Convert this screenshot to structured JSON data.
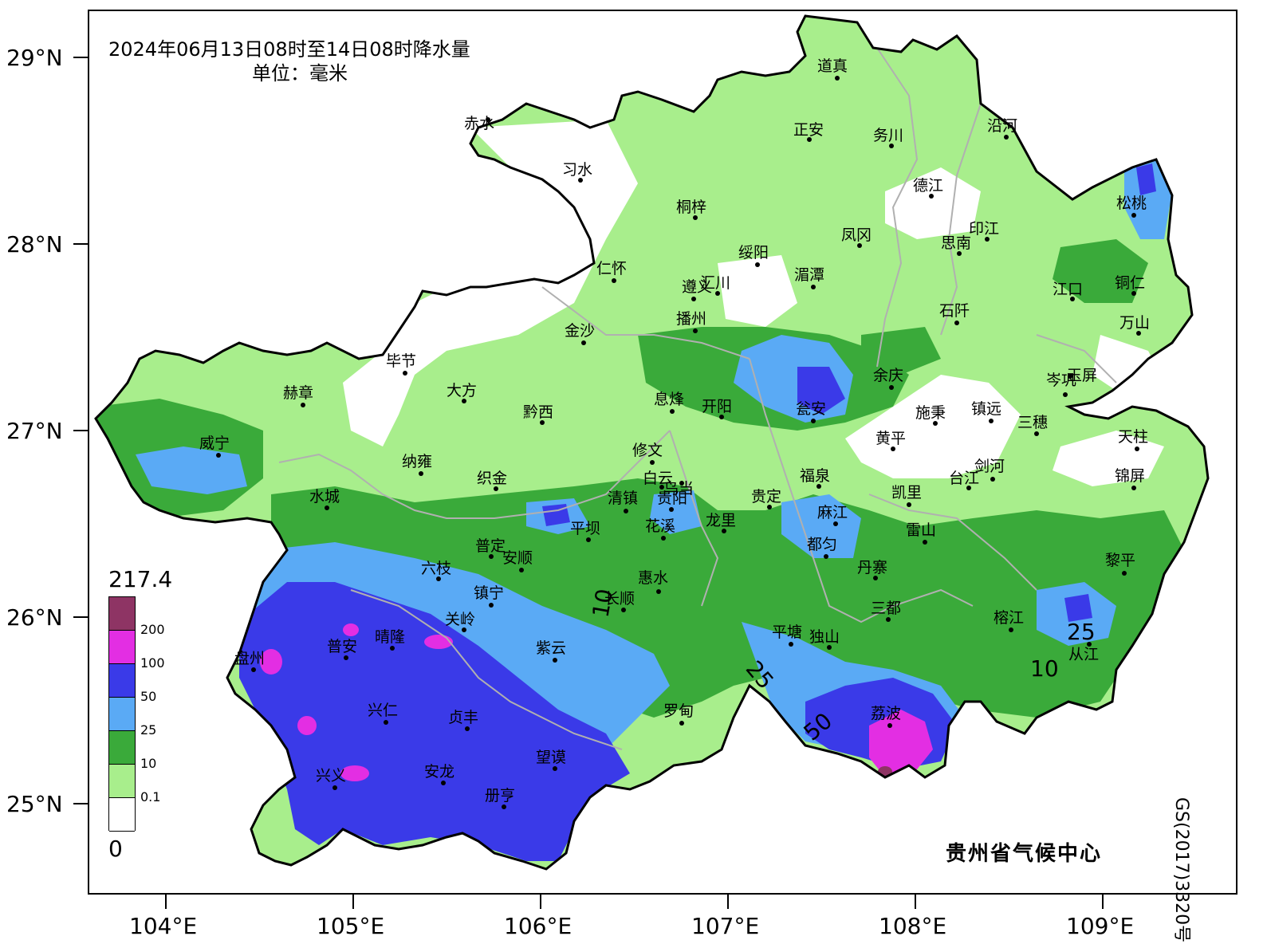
{
  "title": {
    "line1": "2024年06月13日08时至14日08时降水量",
    "line2": "单位：毫米"
  },
  "credit": "贵州省气候中心",
  "map_number": "GS(2017)3320号",
  "axes": {
    "lat_ticks": [
      "29°N",
      "28°N",
      "27°N",
      "26°N",
      "25°N"
    ],
    "lon_ticks": [
      "104°E",
      "105°E",
      "106°E",
      "107°E",
      "108°E",
      "109°E"
    ]
  },
  "legend": {
    "max": "217.4",
    "min": "0",
    "levels": [
      {
        "label": "200",
        "color": "#8e3464"
      },
      {
        "label": "100",
        "color": "#e32ee3"
      },
      {
        "label": "50",
        "color": "#3a3ae8"
      },
      {
        "label": "25",
        "color": "#5aaaf5"
      },
      {
        "label": "10",
        "color": "#3aaa3a"
      },
      {
        "label": "0.1",
        "color": "#a8ee8c"
      },
      {
        "label": "",
        "color": "#ffffff"
      }
    ]
  },
  "contour_labels": [
    "10",
    "25",
    "50",
    "25",
    "10"
  ],
  "cities": [
    "道真",
    "赤水",
    "正安",
    "务川",
    "沿河",
    "习水",
    "德江",
    "松桃",
    "桐梓",
    "凤冈",
    "印江",
    "思南",
    "仁怀",
    "绥阳",
    "湄潭",
    "遵义",
    "汇川",
    "江口",
    "铜仁",
    "播州",
    "石阡",
    "万山",
    "金沙",
    "毕节",
    "余庆",
    "岑巩",
    "玉屏",
    "赫章",
    "大方",
    "黔西",
    "息烽",
    "开阳",
    "瓮安",
    "施秉",
    "镇远",
    "三穗",
    "天柱",
    "威宁",
    "修文",
    "黄平",
    "剑河",
    "纳雍",
    "织金",
    "白云",
    "乌当",
    "福泉",
    "凯里",
    "台江",
    "锦屏",
    "水城",
    "清镇",
    "贵阳",
    "贵定",
    "麻江",
    "雷山",
    "平坝",
    "花溪",
    "龙里",
    "普定",
    "安顺",
    "都匀",
    "六枝",
    "丹寨",
    "黎平",
    "惠水",
    "长顺",
    "镇宁",
    "关岭",
    "三都",
    "榕江",
    "从江",
    "晴隆",
    "普安",
    "平塘",
    "独山",
    "盘州",
    "紫云",
    "罗甸",
    "兴仁",
    "贞丰",
    "荔波",
    "望谟",
    "兴义",
    "安龙",
    "册亨"
  ]
}
